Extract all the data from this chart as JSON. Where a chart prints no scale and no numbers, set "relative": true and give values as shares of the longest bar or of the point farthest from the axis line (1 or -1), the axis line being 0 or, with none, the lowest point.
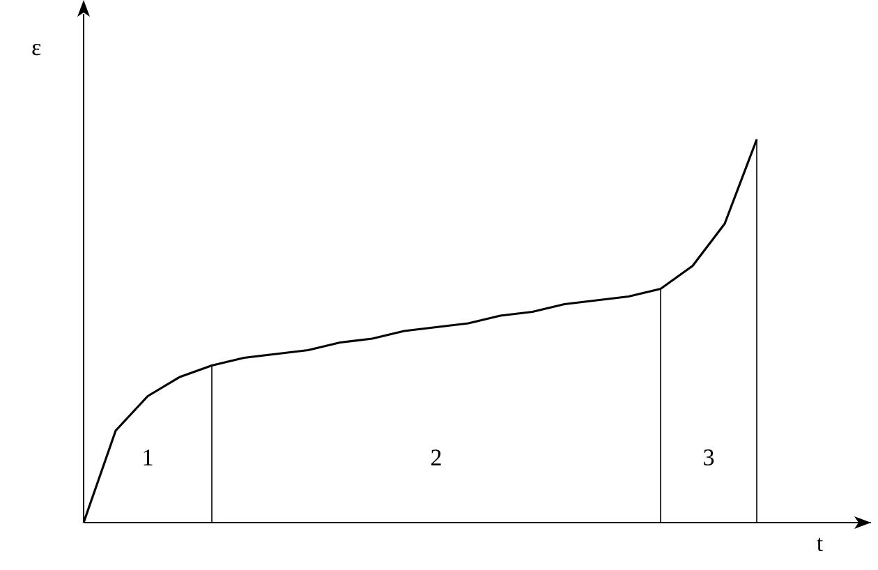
{
  "chart_data": {
    "type": "line",
    "relative": true,
    "xlabel": "t",
    "ylabel": "ε",
    "categories": [
      null,
      null,
      null,
      null,
      null,
      null,
      null,
      null,
      null,
      null,
      null,
      null,
      null,
      null,
      null,
      null,
      null,
      null,
      null,
      null,
      null,
      null
    ],
    "series": [
      {
        "color": "#000000",
        "values": [
          0,
          0.24,
          0.33,
          0.38,
          0.41,
          0.43,
          0.44,
          0.45,
          0.47,
          0.48,
          0.5,
          0.51,
          0.52,
          0.54,
          0.55,
          0.57,
          0.58,
          0.59,
          0.61,
          0.67,
          0.78,
          1
        ]
      }
    ],
    "annotations": [
      "1",
      "2",
      "3"
    ],
    "marker": "none",
    "line_style": "solid"
  }
}
